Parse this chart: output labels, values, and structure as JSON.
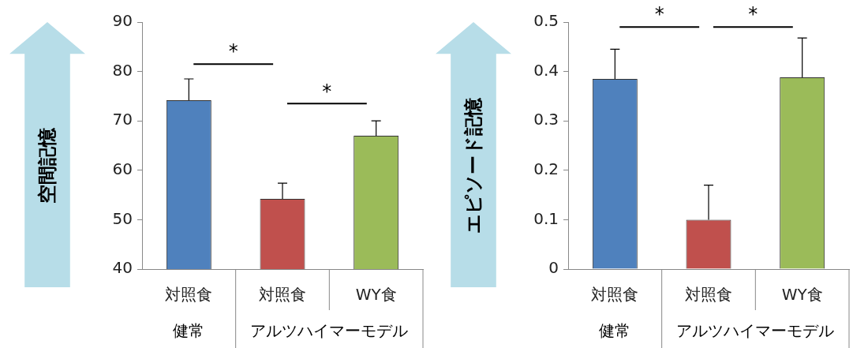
{
  "chart_data": [
    {
      "type": "bar",
      "ylabel": "空間記憶",
      "categories": [
        "対照食",
        "対照食",
        "WY食"
      ],
      "values": [
        74.2,
        54.2,
        67.0
      ],
      "colors": [
        "#4f81bd",
        "#c0504d",
        "#9bbb59"
      ],
      "errors": [
        4.3,
        3.2,
        3.0
      ],
      "ylim": [
        40,
        90
      ],
      "yticks": [
        40,
        50,
        60,
        70,
        80,
        90
      ],
      "grid": false,
      "annotations": [
        "*",
        "*",
        "健常",
        "アルツハイマーモデル"
      ]
    },
    {
      "type": "bar",
      "ylabel": "エピソード記憶",
      "categories": [
        "対照食",
        "対照食",
        "WY食"
      ],
      "values": [
        0.385,
        0.1,
        0.388
      ],
      "colors": [
        "#4f81bd",
        "#c0504d",
        "#9bbb59"
      ],
      "errors": [
        0.06,
        0.07,
        0.08
      ],
      "ylim": [
        0,
        0.5
      ],
      "yticks": [
        0,
        0.1,
        0.2,
        0.3,
        0.4,
        0.5
      ],
      "grid": false,
      "annotations": [
        "*",
        "*",
        "健常",
        "アルツハイマーモデル"
      ]
    }
  ]
}
